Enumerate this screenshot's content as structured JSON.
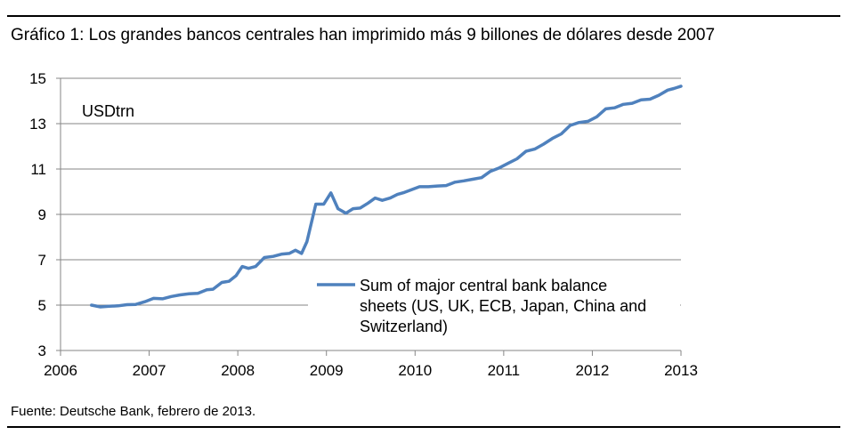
{
  "title": "Gráfico 1: Los grandes bancos centrales han imprimido más 9 billones de dólares desde 2007",
  "source": "Fuente: Deutsche Bank, febrero de 2013.",
  "colors": {
    "line": "#4F81BD",
    "grid": "#868686",
    "axis": "#868686",
    "text": "#000000"
  },
  "chart_data": {
    "type": "line",
    "unit_label": "USDtrn",
    "grid": true,
    "legend_position": "center-right",
    "xlim": [
      2006,
      2013
    ],
    "ylim": [
      3,
      15
    ],
    "x_ticks": [
      2006,
      2007,
      2008,
      2009,
      2010,
      2011,
      2012,
      2013
    ],
    "y_ticks": [
      3,
      5,
      7,
      9,
      11,
      13,
      15
    ],
    "x_tick_labels": [
      "2006",
      "2007",
      "2008",
      "2009",
      "2010",
      "2011",
      "2012",
      "2013"
    ],
    "y_tick_labels": [
      "3",
      "5",
      "7",
      "9",
      "11",
      "13",
      "15"
    ],
    "series": [
      {
        "name": "Sum of major central bank balance sheets (US, UK, ECB, Japan, China and Switzerland)",
        "legend_lines": [
          "Sum of major central bank balance",
          "sheets (US, UK, ECB, Japan, China and",
          "Switzerland)"
        ],
        "x": [
          2006.35,
          2006.45,
          2006.55,
          2006.65,
          2006.75,
          2006.85,
          2006.95,
          2007.05,
          2007.15,
          2007.25,
          2007.35,
          2007.45,
          2007.55,
          2007.65,
          2007.72,
          2007.82,
          2007.9,
          2007.98,
          2008.05,
          2008.12,
          2008.2,
          2008.3,
          2008.4,
          2008.5,
          2008.58,
          2008.65,
          2008.72,
          2008.78,
          2008.88,
          2008.97,
          2009.05,
          2009.13,
          2009.22,
          2009.3,
          2009.38,
          2009.47,
          2009.55,
          2009.63,
          2009.72,
          2009.8,
          2009.88,
          2009.97,
          2010.05,
          2010.15,
          2010.25,
          2010.35,
          2010.45,
          2010.55,
          2010.65,
          2010.75,
          2010.85,
          2010.95,
          2011.05,
          2011.15,
          2011.25,
          2011.35,
          2011.45,
          2011.55,
          2011.65,
          2011.75,
          2011.85,
          2011.95,
          2012.05,
          2012.15,
          2012.25,
          2012.35,
          2012.45,
          2012.55,
          2012.65,
          2012.75,
          2012.85,
          2012.92,
          2013.0
        ],
        "y": [
          5.0,
          4.92,
          4.95,
          4.97,
          5.02,
          5.03,
          5.15,
          5.3,
          5.28,
          5.38,
          5.45,
          5.5,
          5.52,
          5.68,
          5.7,
          6.0,
          6.05,
          6.3,
          6.7,
          6.62,
          6.7,
          7.1,
          7.15,
          7.25,
          7.28,
          7.42,
          7.28,
          7.8,
          9.45,
          9.45,
          9.95,
          9.25,
          9.05,
          9.25,
          9.28,
          9.5,
          9.72,
          9.62,
          9.72,
          9.88,
          9.97,
          10.1,
          10.22,
          10.22,
          10.25,
          10.27,
          10.42,
          10.48,
          10.55,
          10.62,
          10.9,
          11.05,
          11.25,
          11.45,
          11.78,
          11.88,
          12.1,
          12.35,
          12.55,
          12.92,
          13.05,
          13.1,
          13.3,
          13.65,
          13.7,
          13.85,
          13.9,
          14.05,
          14.08,
          14.25,
          14.48,
          14.55,
          14.65
        ]
      }
    ]
  }
}
